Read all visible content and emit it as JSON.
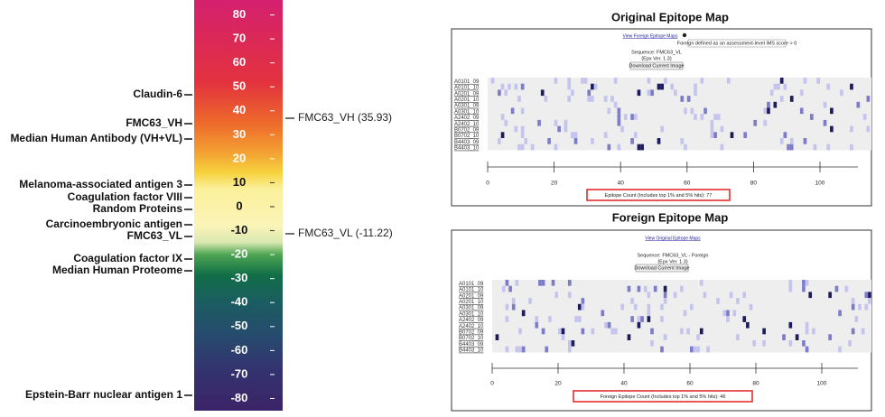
{
  "scale": {
    "ticks": [
      80,
      70,
      60,
      50,
      40,
      30,
      20,
      10,
      0,
      -10,
      -20,
      -30,
      -40,
      -50,
      -60,
      -70,
      -80
    ],
    "left_labels": [
      "Claudin-6",
      "FMC63_VH",
      "Median Human Antibody (VH+VL)",
      "Melanoma-associated antigen 3",
      "Coagulation factor VIII",
      "Random Proteins",
      "Carcinoembryonic antigen",
      "FMC63_VL",
      "Coagulation factor IX",
      "Median Human Proteome",
      "Epstein-Barr nuclear antigen 1"
    ],
    "right_labels": [
      "FMC63_VH (35.93)",
      "FMC63_VL (-11.22)"
    ]
  },
  "original_map": {
    "title": "Original Epitope Map",
    "link": "View Foreign Epitope Maps",
    "tooltip": "Foreign defined as an assessment-level iMS score > 0",
    "sequence": "Sequence: FMC63_VL",
    "version": "(Epx Ver. 1.3)",
    "button": "Download Current Image",
    "rows": [
      "A0101_09",
      "A0101_10",
      "A0201_09",
      "A0201_10",
      "A0301_09",
      "A0301_10",
      "A2402_09",
      "A2402_10",
      "B0702_09",
      "B0702_10",
      "B4403_09",
      "B4403_10"
    ],
    "axis_ticks": [
      0,
      20,
      40,
      60,
      80,
      100
    ],
    "count": "Epitope Count (Includes top 1% and 5% hits): 77"
  },
  "foreign_map": {
    "title": "Foreign Epitope Map",
    "link": "View Original Epitope Maps",
    "sequence": "Sequence: FMC63_VL - Foreign",
    "version": "(Epx Ver. 1.3)",
    "button": "Download Current Image",
    "rows": [
      "A0101_09",
      "A0101_10",
      "A0201_09",
      "A0201_10",
      "A0301_09",
      "A0301_10",
      "A2402_09",
      "A2402_10",
      "B0702_09",
      "B0702_10",
      "B4403_09",
      "B4403_10"
    ],
    "axis_ticks": [
      0,
      20,
      40,
      60,
      80,
      100
    ],
    "count": "Foreign Epitope Count (Includes top 1% and 5% hits): 46"
  }
}
